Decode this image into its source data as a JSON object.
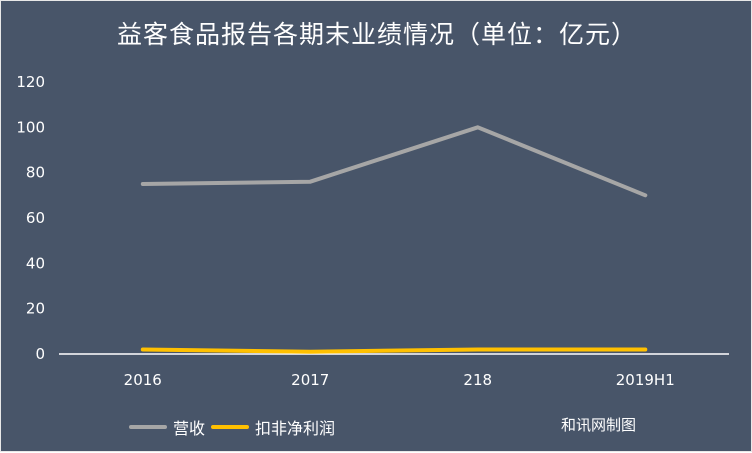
{
  "chart_data": {
    "type": "line",
    "title": "益客食品报告各期末业绩情况（单位：亿元）",
    "categories": [
      "2016",
      "2017",
      "218",
      "2019H1"
    ],
    "series": [
      {
        "name": "营收",
        "values": [
          75,
          76,
          100,
          70
        ],
        "color": "#a6a6a6"
      },
      {
        "name": "扣非净利润",
        "values": [
          2,
          1,
          2,
          2
        ],
        "color": "#ffc000"
      }
    ],
    "ylim": [
      0,
      120
    ],
    "yticks": [
      "0",
      "20",
      "40",
      "60",
      "80",
      "100",
      "120"
    ],
    "grid": false,
    "legend_position": "bottom-left"
  },
  "watermark": "和讯网制图",
  "colors": {
    "background": "#485569",
    "text": "#ffffff",
    "axis": "#ffffff"
  }
}
